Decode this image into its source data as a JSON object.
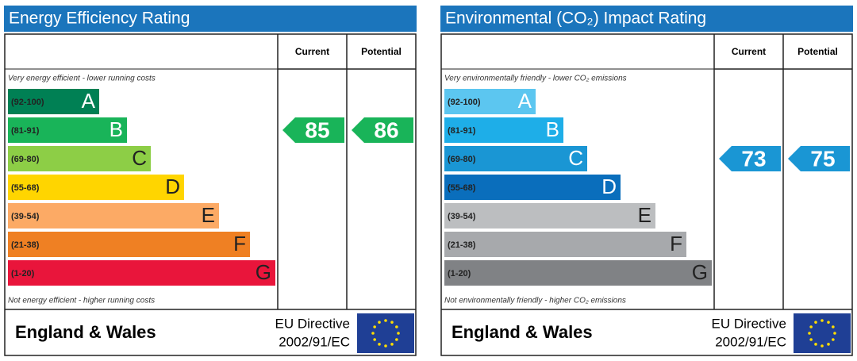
{
  "panels": [
    {
      "title": "Energy Efficiency Rating",
      "current_label": "Current",
      "potential_label": "Potential",
      "top_note": "Very energy efficient - lower running costs",
      "bottom_note": "Not energy efficient - higher running costs",
      "bands": [
        {
          "range": "(92-100)",
          "letter": "A",
          "color": "#008054"
        },
        {
          "range": "(81-91)",
          "letter": "B",
          "color": "#19b459"
        },
        {
          "range": "(69-80)",
          "letter": "C",
          "color": "#8dce46"
        },
        {
          "range": "(55-68)",
          "letter": "D",
          "color": "#ffd500"
        },
        {
          "range": "(39-54)",
          "letter": "E",
          "color": "#fcaa65"
        },
        {
          "range": "(21-38)",
          "letter": "F",
          "color": "#ef8023"
        },
        {
          "range": "(1-20)",
          "letter": "G",
          "color": "#e9153b"
        }
      ],
      "current": 85,
      "potential": 86,
      "region": "England & Wales",
      "directive_line1": "EU Directive",
      "directive_line2": "2002/91/EC"
    },
    {
      "title": "Environmental (CO₂) Impact Rating",
      "current_label": "Current",
      "potential_label": "Potential",
      "top_note": "Very environmentally friendly - lower CO₂ emissions",
      "bottom_note": "Not environmentally friendly - higher CO₂ emissions",
      "bands": [
        {
          "range": "(92-100)",
          "letter": "A",
          "color": "#5cc6f0"
        },
        {
          "range": "(81-91)",
          "letter": "B",
          "color": "#1eaee8"
        },
        {
          "range": "(69-80)",
          "letter": "C",
          "color": "#1a96d4"
        },
        {
          "range": "(55-68)",
          "letter": "D",
          "color": "#0a6ebc"
        },
        {
          "range": "(39-54)",
          "letter": "E",
          "color": "#bcbec0"
        },
        {
          "range": "(21-38)",
          "letter": "F",
          "color": "#a7a9ac"
        },
        {
          "range": "(1-20)",
          "letter": "G",
          "color": "#808285"
        }
      ],
      "current": 73,
      "potential": 75,
      "region": "England & Wales",
      "directive_line1": "EU Directive",
      "directive_line2": "2002/91/EC"
    }
  ]
}
